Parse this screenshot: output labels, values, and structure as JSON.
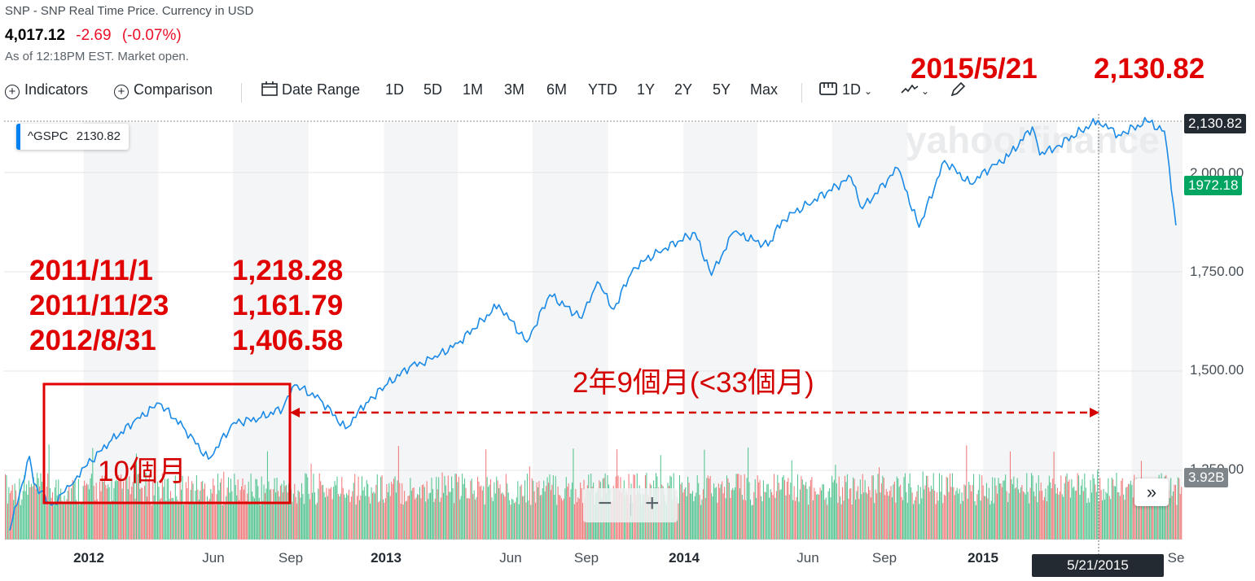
{
  "header": {
    "subtitle": "SNP - SNP Real Time Price. Currency in USD",
    "price": "4,017.12",
    "change": "-2.69",
    "change_pct": "(-0.07%)",
    "as_of": "As of 12:18PM EST. Market open."
  },
  "toolbar": {
    "indicators": "Indicators",
    "comparison": "Comparison",
    "date_range": "Date Range",
    "ranges": [
      "1D",
      "5D",
      "1M",
      "3M",
      "6M",
      "YTD",
      "1Y",
      "2Y",
      "5Y",
      "Max"
    ],
    "interval": "1D"
  },
  "legend": {
    "symbol": "^GSPC",
    "value": "2130.82"
  },
  "watermark": "yahoo!finance",
  "annotations": {
    "peak_date": "2015/5/21",
    "peak_value": "2,130.82",
    "lines": [
      {
        "date": "2011/11/1",
        "value": "1,218.28"
      },
      {
        "date": "2011/11/23",
        "value": "1,161.79"
      },
      {
        "date": "2012/8/31",
        "value": "1,406.58"
      }
    ],
    "duration_long": "2年9個月(<33個月)",
    "duration_short": "10個月"
  },
  "colors": {
    "line": "#1a8ae6",
    "annotation": "#e00000",
    "badge_green": "#00a562",
    "badge_dark": "#232a31",
    "badge_gray": "#7e868c"
  },
  "y_badges": {
    "top": "2,130.82",
    "current": "1972.18",
    "volume": "3.92B"
  },
  "crosshair_date": "5/21/2015",
  "zoom": {
    "minus": "−",
    "plus": "+"
  },
  "expand_icon": "»",
  "chart_data": {
    "type": "line",
    "series": [
      {
        "name": "^GSPC",
        "x": [
          "2011-10-03",
          "2011-10-27",
          "2011-11-01",
          "2011-11-23",
          "2011-12-15",
          "2012-01-02",
          "2012-02-01",
          "2012-03-01",
          "2012-04-02",
          "2012-05-01",
          "2012-06-01",
          "2012-07-02",
          "2012-08-01",
          "2012-08-31",
          "2012-09-14",
          "2012-10-15",
          "2012-11-15",
          "2012-12-10",
          "2013-01-02",
          "2013-02-01",
          "2013-03-01",
          "2013-04-01",
          "2013-05-21",
          "2013-06-24",
          "2013-07-22",
          "2013-08-30",
          "2013-09-18",
          "2013-10-08",
          "2013-11-01",
          "2013-12-01",
          "2014-01-15",
          "2014-02-04",
          "2014-03-03",
          "2014-04-14",
          "2014-05-01",
          "2014-06-01",
          "2014-07-24",
          "2014-08-07",
          "2014-09-19",
          "2014-10-15",
          "2014-11-15",
          "2014-12-16",
          "2015-01-15",
          "2015-02-01",
          "2015-03-02",
          "2015-03-11",
          "2015-04-01",
          "2015-05-21",
          "2015-06-15",
          "2015-07-20",
          "2015-08-10",
          "2015-08-24"
        ],
        "y": [
          1099,
          1285,
          1218,
          1162,
          1210,
          1258,
          1320,
          1370,
          1419,
          1360,
          1278,
          1370,
          1380,
          1407,
          1465,
          1430,
          1355,
          1420,
          1462,
          1510,
          1530,
          1570,
          1667,
          1573,
          1692,
          1633,
          1725,
          1656,
          1760,
          1800,
          1848,
          1741,
          1850,
          1815,
          1880,
          1920,
          1988,
          1909,
          2011,
          1862,
          2030,
          1972,
          2020,
          2040,
          2115,
          2044,
          2067,
          2131,
          2095,
          2128,
          2104,
          1867
        ]
      }
    ],
    "volume": {
      "description": "daily volume bars (green up / red down)",
      "approx_range_billions": [
        2.5,
        6.0
      ],
      "last": "3.92B"
    },
    "title": "",
    "xlabel": "",
    "ylabel": "",
    "x_ticks": [
      "2012",
      "Jun",
      "Sep",
      "2013",
      "Jun",
      "Sep",
      "2014",
      "Jun",
      "Sep",
      "2015",
      "Se"
    ],
    "y_ticks": [
      "1,250.00",
      "1,500.00",
      "1,750.00",
      "2,000.00"
    ],
    "ylim": [
      1070,
      2160
    ],
    "grid": true,
    "legend": "top-left"
  }
}
